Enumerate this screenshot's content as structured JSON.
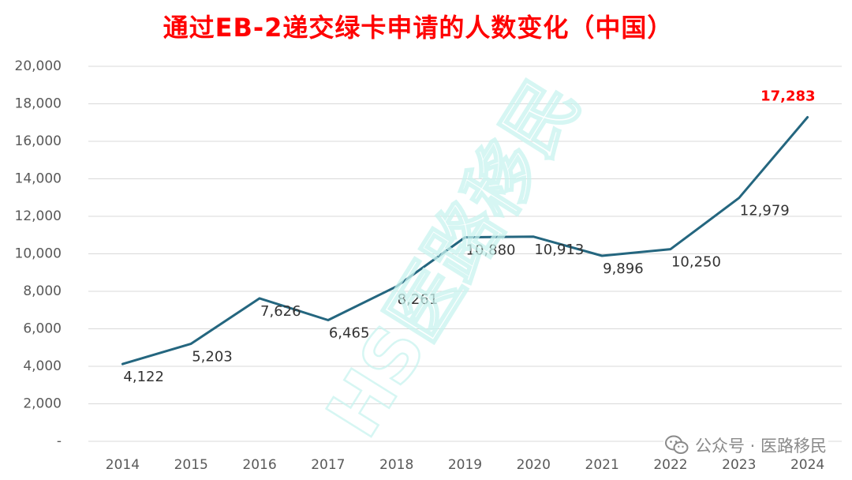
{
  "colors": {
    "title": "#ff0000",
    "line": "#24667f",
    "grid": "#d9d9d9",
    "tick_text": "#595959",
    "label_text": "#333333",
    "highlight_label": "#ff0000",
    "watermark": "#c9f4ef"
  },
  "watermark": {
    "text": "HS医路移民"
  },
  "footer": {
    "wechat_icon": "wechat-icon",
    "credit": "公众号 · 医路移民"
  },
  "chart_data": {
    "type": "line",
    "title": "通过EB-2递交绿卡申请的人数变化（中国）",
    "xlabel": "",
    "ylabel": "",
    "categories": [
      "2014",
      "2015",
      "2016",
      "2017",
      "2018",
      "2019",
      "2020",
      "2021",
      "2022",
      "2023",
      "2024"
    ],
    "series": [
      {
        "values": [
          4122,
          5203,
          7626,
          6465,
          8261,
          10880,
          10913,
          9896,
          10250,
          12979,
          17283
        ],
        "labels": [
          "4,122",
          "5,203",
          "7,626",
          "6,465",
          "8,261",
          "10,880",
          "10,913",
          "9,896",
          "10,250",
          "12,979",
          "17,283"
        ]
      }
    ],
    "ylim": [
      0,
      20000
    ],
    "yticks": [
      {
        "value": 0,
        "label": "-"
      },
      {
        "value": 2000,
        "label": "2,000"
      },
      {
        "value": 4000,
        "label": "4,000"
      },
      {
        "value": 6000,
        "label": "6,000"
      },
      {
        "value": 8000,
        "label": "8,000"
      },
      {
        "value": 10000,
        "label": "10,000"
      },
      {
        "value": 12000,
        "label": "12,000"
      },
      {
        "value": 14000,
        "label": "14,000"
      },
      {
        "value": 16000,
        "label": "16,000"
      },
      {
        "value": 18000,
        "label": "18,000"
      },
      {
        "value": 20000,
        "label": "20,000"
      }
    ],
    "grid": true,
    "legend": "none",
    "highlight_last_label": true
  }
}
